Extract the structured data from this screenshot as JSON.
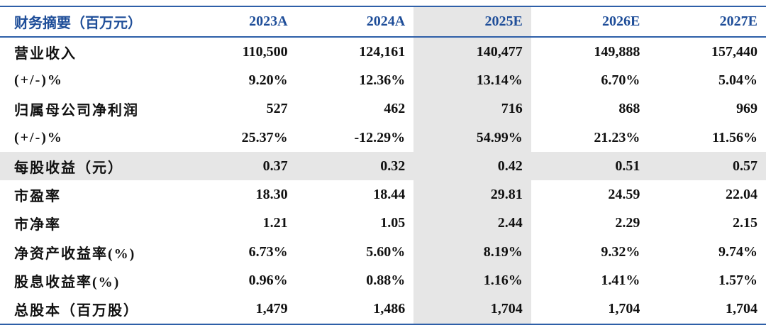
{
  "header": {
    "columns": [
      "财务摘要（百万元）",
      "2023A",
      "2024A",
      "2025E",
      "2026E",
      "2027E"
    ]
  },
  "table": {
    "rows": [
      [
        "营业收入",
        "110,500",
        "124,161",
        "140,477",
        "149,888",
        "157,440"
      ],
      [
        "(+/-)%",
        "9.20%",
        "12.36%",
        "13.14%",
        "6.70%",
        "5.04%"
      ],
      [
        "归属母公司净利润",
        "527",
        "462",
        "716",
        "868",
        "969"
      ],
      [
        "(+/-)%",
        "25.37%",
        "-12.29%",
        "54.99%",
        "21.23%",
        "11.56%"
      ],
      [
        "每股收益（元）",
        "0.37",
        "0.32",
        "0.42",
        "0.51",
        "0.57"
      ],
      [
        "市盈率",
        "18.30",
        "18.44",
        "29.81",
        "24.59",
        "22.04"
      ],
      [
        "市净率",
        "1.21",
        "1.05",
        "2.44",
        "2.29",
        "2.15"
      ],
      [
        "净资产收益率(%)",
        "6.73%",
        "5.60%",
        "8.19%",
        "9.32%",
        "9.74%"
      ],
      [
        "股息收益率(%)",
        "0.96%",
        "0.88%",
        "1.16%",
        "1.41%",
        "1.57%"
      ],
      [
        "总股本（百万股）",
        "1,479",
        "1,486",
        "1,704",
        "1,704",
        "1,704"
      ]
    ]
  }
}
